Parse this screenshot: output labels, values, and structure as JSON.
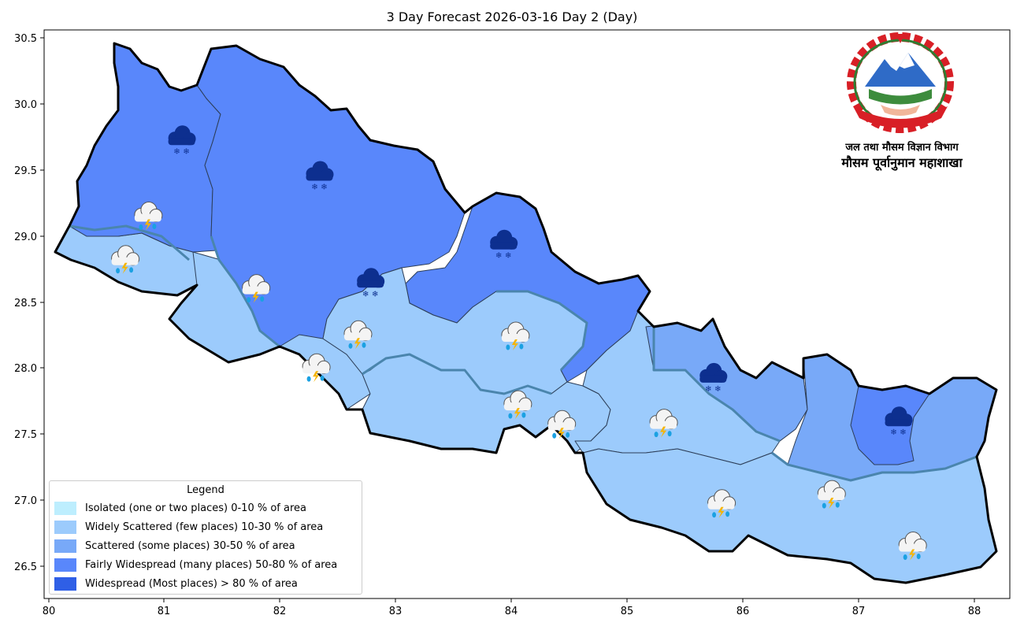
{
  "title": "3 Day Forecast 2026-03-16 Day 2 (Day)",
  "axes": {
    "x_ticks": [
      "80",
      "81",
      "82",
      "83",
      "84",
      "85",
      "86",
      "87",
      "88"
    ],
    "y_ticks": [
      "30.5",
      "30.0",
      "29.5",
      "29.0",
      "28.5",
      "28.0",
      "27.5",
      "27.0",
      "26.5"
    ]
  },
  "colors": {
    "isolated": "#bdeefe",
    "widely_scattered": "#9ccbfc",
    "scattered": "#78a9f8",
    "fairly_widespread": "#5987fb",
    "widespread": "#2f5fe6",
    "province_border": "#4a85ad",
    "district_border": "#2c3d57"
  },
  "legend": {
    "title": "Legend",
    "items": [
      {
        "label": "Isolated (one or two places)  0-10 % of area",
        "color": "#bdeefe"
      },
      {
        "label": "Widely Scattered (few places)  10-30 % of area",
        "color": "#9ccbfc"
      },
      {
        "label": "Scattered (some places)  30-50 % of area",
        "color": "#78a9f8"
      },
      {
        "label": "Fairly Widespread (many places)  50-80 % of area",
        "color": "#5987fb"
      },
      {
        "label": "Widespread (Most places) > 80 % of area",
        "color": "#2f5fe6"
      }
    ]
  },
  "emblem": {
    "icon": "nepal-emblem",
    "caption_line1": "जल तथा मौसम विज्ञान विभाग",
    "caption_line2": "मौसम पूर्वानुमान महाशाखा"
  },
  "weather_icons": [
    {
      "type": "snow-cloud-icon",
      "lon": 81.14,
      "lat": 29.73
    },
    {
      "type": "snow-cloud-icon",
      "lon": 82.33,
      "lat": 29.46
    },
    {
      "type": "snow-cloud-icon",
      "lon": 83.92,
      "lat": 28.94
    },
    {
      "type": "snow-cloud-icon",
      "lon": 82.77,
      "lat": 28.65
    },
    {
      "type": "snow-cloud-icon",
      "lon": 85.73,
      "lat": 27.93
    },
    {
      "type": "snow-cloud-icon",
      "lon": 87.33,
      "lat": 27.6
    },
    {
      "type": "thunder-rain-icon",
      "lon": 80.85,
      "lat": 29.15
    },
    {
      "type": "thunder-rain-icon",
      "lon": 80.65,
      "lat": 28.82
    },
    {
      "type": "thunder-rain-icon",
      "lon": 81.78,
      "lat": 28.6
    },
    {
      "type": "thunder-rain-icon",
      "lon": 82.66,
      "lat": 28.25
    },
    {
      "type": "thunder-rain-icon",
      "lon": 82.3,
      "lat": 28.0
    },
    {
      "type": "thunder-rain-icon",
      "lon": 84.02,
      "lat": 28.24
    },
    {
      "type": "thunder-rain-icon",
      "lon": 84.04,
      "lat": 27.72
    },
    {
      "type": "thunder-rain-icon",
      "lon": 84.42,
      "lat": 27.57
    },
    {
      "type": "thunder-rain-icon",
      "lon": 85.3,
      "lat": 27.58
    },
    {
      "type": "thunder-rain-icon",
      "lon": 85.8,
      "lat": 26.97
    },
    {
      "type": "thunder-rain-icon",
      "lon": 86.75,
      "lat": 27.04
    },
    {
      "type": "thunder-rain-icon",
      "lon": 87.45,
      "lat": 26.65
    }
  ]
}
